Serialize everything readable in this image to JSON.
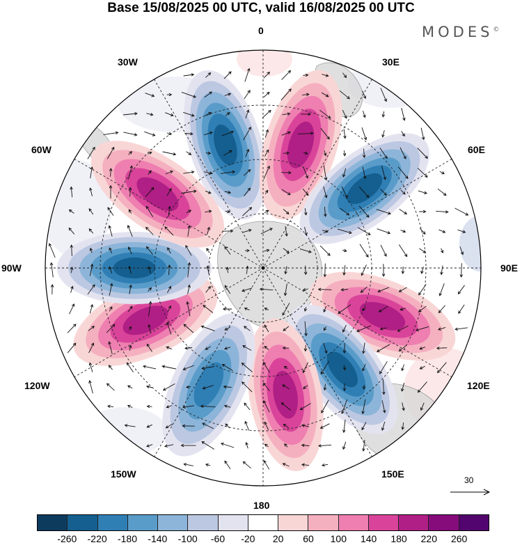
{
  "title": "Base 15/08/2025 00 UTC, valid 16/08/2025 00 UTC",
  "logo": "MODES",
  "logo_mark": "©",
  "longitude_labels": {
    "lon_0": "0",
    "lon_30e": "30E",
    "lon_60e": "60E",
    "lon_90e": "90E",
    "lon_120e": "120E",
    "lon_150e": "150E",
    "lon_180": "180",
    "lon_150w": "150W",
    "lon_120w": "120W",
    "lon_90w": "90W",
    "lon_60w": "60W",
    "lon_30w": "30W"
  },
  "reference_vector": "30",
  "colorbar": {
    "ticks": [
      "-260",
      "-220",
      "-180",
      "-140",
      "-100",
      "-60",
      "-20",
      "20",
      "60",
      "100",
      "140",
      "180",
      "220",
      "260"
    ],
    "colors": [
      "#0d3b5e",
      "#145f8f",
      "#2f7fb5",
      "#5a9cc9",
      "#8db5d9",
      "#bcc8e2",
      "#e3e3f0",
      "#ffffff",
      "#f9d6d6",
      "#f5b0c0",
      "#ee7fb0",
      "#d9449a",
      "#b01f85",
      "#860b7b",
      "#52056e"
    ]
  },
  "anomaly_lobes": [
    {
      "id": "neg-1",
      "bearing_deg": 343,
      "sign": "negative",
      "max": -240
    },
    {
      "id": "pos-1",
      "bearing_deg": 17,
      "sign": "positive",
      "max": 230
    },
    {
      "id": "neg-2",
      "bearing_deg": 52,
      "sign": "negative",
      "max": -240
    },
    {
      "id": "pos-2",
      "bearing_deg": 112,
      "sign": "positive",
      "max": 250
    },
    {
      "id": "neg-3",
      "bearing_deg": 142,
      "sign": "negative",
      "max": -240
    },
    {
      "id": "pos-3",
      "bearing_deg": 170,
      "sign": "positive",
      "max": 230
    },
    {
      "id": "neg-4",
      "bearing_deg": 205,
      "sign": "negative",
      "max": -190
    },
    {
      "id": "pos-4",
      "bearing_deg": 246,
      "sign": "positive",
      "max": 200
    },
    {
      "id": "neg-5",
      "bearing_deg": 270,
      "sign": "negative",
      "max": -220
    },
    {
      "id": "pos-5",
      "bearing_deg": 305,
      "sign": "positive",
      "max": 220
    }
  ]
}
